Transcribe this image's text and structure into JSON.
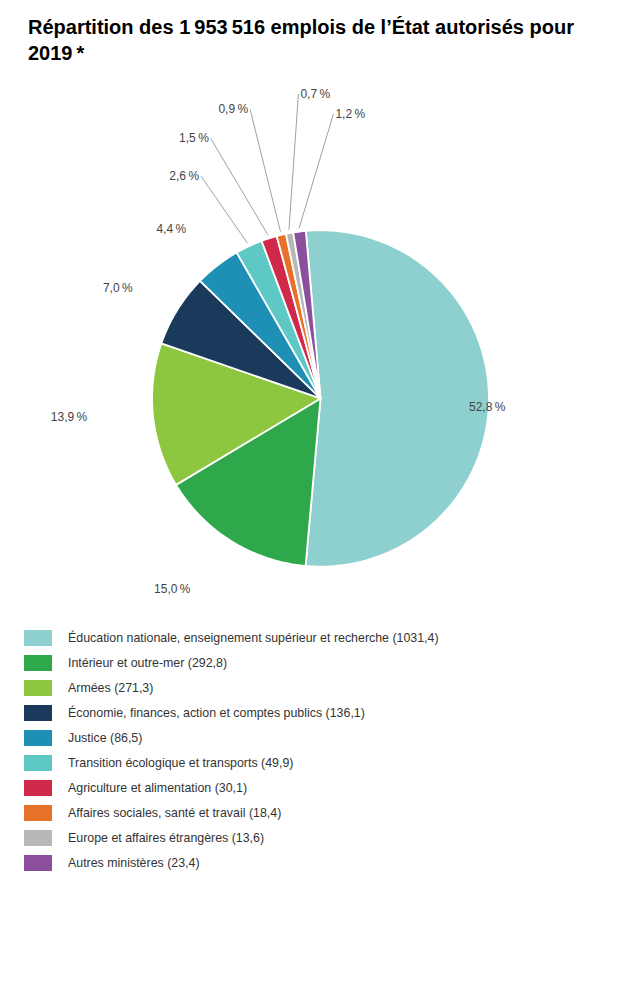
{
  "chart_data": {
    "type": "pie",
    "title": "Répartition des 1 953 516 emplois de l’État autorisés pour 2019 *",
    "categories": [
      "Éducation nationale, enseignement supérieur et recherche (1031,4)",
      "Intérieur et outre-mer (292,8)",
      "Armées (271,3)",
      "Économie, finances, action et comptes publics (136,1)",
      "Justice (86,5)",
      "Transition écologique et transports (49,9)",
      "Agriculture et alimentation (30,1)",
      "Affaires sociales, santé et travail (18,4)",
      "Europe et affaires étrangères (13,6)",
      "Autres ministères (23,4)"
    ],
    "values": [
      52.8,
      15.0,
      13.9,
      7.0,
      4.4,
      2.6,
      1.5,
      0.9,
      0.7,
      1.2
    ],
    "value_labels": [
      "52,8 %",
      "15,0 %",
      "13,9 %",
      "7,0 %",
      "4,4 %",
      "2,6 %",
      "1,5 %",
      "0,9 %",
      "0,7 %",
      "1,2 %"
    ],
    "colors": [
      "#8ecfcf",
      "#2ea84b",
      "#8dc63f",
      "#1a3a5c",
      "#1e8fb5",
      "#5ec8c4",
      "#d0294a",
      "#e8712a",
      "#b8b8b8",
      "#8b4f9e"
    ],
    "data_labels": true,
    "legend": "bottom"
  }
}
